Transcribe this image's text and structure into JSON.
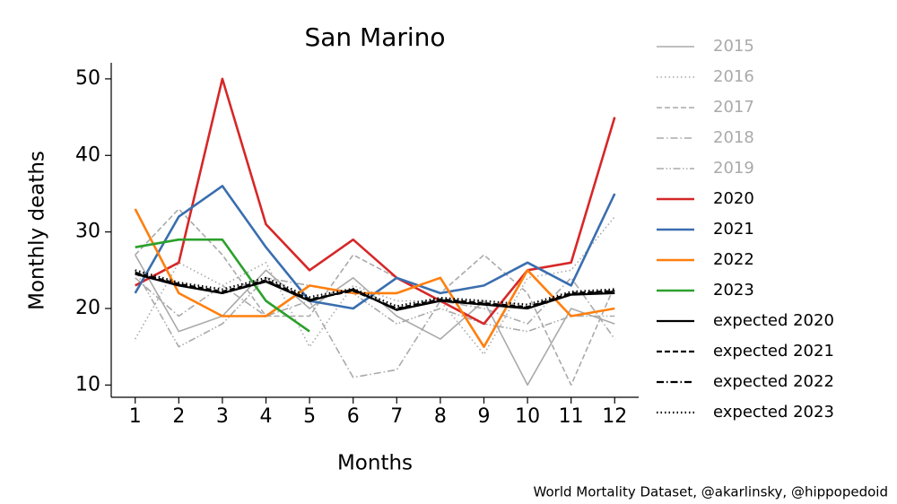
{
  "chart_data": {
    "type": "line",
    "title": "San Marino",
    "x_label": "Months",
    "y_label": "Monthly deaths",
    "source": "World Mortality Dataset, @akarlinsky, @hippopedoid",
    "x": [
      1,
      2,
      3,
      4,
      5,
      6,
      7,
      8,
      9,
      10,
      11,
      12
    ],
    "xlim": [
      0.45,
      12.55
    ],
    "xticks": [
      1,
      2,
      3,
      4,
      5,
      6,
      7,
      8,
      9,
      10,
      11,
      12
    ],
    "ylim": [
      8.4,
      52.1
    ],
    "yticks": [
      10,
      20,
      30,
      40,
      50
    ],
    "legend": "outside right",
    "series": [
      {
        "name": "2015",
        "color": "#aaaaaa",
        "linestyle": "solid",
        "values": [
          27,
          17,
          19,
          25,
          20,
          24,
          19,
          16,
          21,
          10,
          20,
          18
        ]
      },
      {
        "name": "2016",
        "color": "#aaaaaa",
        "linestyle": "dotted",
        "values": [
          16,
          26,
          23,
          26,
          15,
          23,
          21,
          21,
          14,
          24,
          25,
          32
        ]
      },
      {
        "name": "2017",
        "color": "#aaaaaa",
        "linestyle": "dashed",
        "values": [
          27,
          33,
          27,
          19,
          19,
          27,
          24,
          22,
          27,
          22,
          10,
          23
        ]
      },
      {
        "name": "2018",
        "color": "#aaaaaa",
        "linestyle": "dashdot",
        "values": [
          24,
          19,
          23,
          19,
          21,
          11,
          12,
          21,
          20,
          18,
          24,
          16
        ]
      },
      {
        "name": "2019",
        "color": "#aaaaaa",
        "linestyle": "dashdotdot",
        "values": [
          25,
          15,
          18,
          24,
          23,
          22,
          18,
          20,
          18,
          17,
          19,
          19
        ]
      },
      {
        "name": "2020",
        "color": "#d62728",
        "linestyle": "solid",
        "values": [
          23,
          26,
          50,
          31,
          25,
          29,
          24,
          21,
          18,
          25,
          26,
          45
        ]
      },
      {
        "name": "2021",
        "color": "#3a6eaf",
        "linestyle": "solid",
        "values": [
          22,
          32,
          36,
          28,
          21,
          20,
          24,
          22,
          23,
          26,
          23,
          35
        ]
      },
      {
        "name": "2022",
        "color": "#ff7f0e",
        "linestyle": "solid",
        "values": [
          33,
          22,
          19,
          19,
          23,
          22,
          22,
          24,
          15,
          25,
          19,
          20
        ]
      },
      {
        "name": "2023",
        "color": "#2ca02c",
        "linestyle": "solid",
        "values": [
          28,
          29,
          29,
          21,
          17,
          null,
          null,
          null,
          null,
          null,
          null,
          null
        ]
      },
      {
        "name": "expected 2020",
        "color": "#000000",
        "linestyle": "solid",
        "values": [
          24.5,
          23,
          22,
          23.5,
          21,
          22.5,
          19.8,
          21,
          20.5,
          20,
          21.8,
          22
        ]
      },
      {
        "name": "expected 2021",
        "color": "#000000",
        "linestyle": "dashed",
        "values": [
          24.7,
          23.2,
          22.2,
          23.7,
          21.2,
          22.3,
          20,
          21.2,
          20.7,
          20.2,
          22,
          22.3
        ]
      },
      {
        "name": "expected 2022",
        "color": "#000000",
        "linestyle": "dashdot",
        "values": [
          24.6,
          23.1,
          22,
          23.6,
          21.1,
          22.4,
          19.9,
          21.1,
          20.6,
          20.1,
          21.9,
          22.2
        ]
      },
      {
        "name": "expected 2023",
        "color": "#000000",
        "linestyle": "dotted",
        "values": [
          25,
          23.4,
          22.5,
          24,
          21.5,
          22.6,
          20.3,
          21.4,
          21,
          20.5,
          22.2,
          22.5
        ]
      }
    ]
  }
}
